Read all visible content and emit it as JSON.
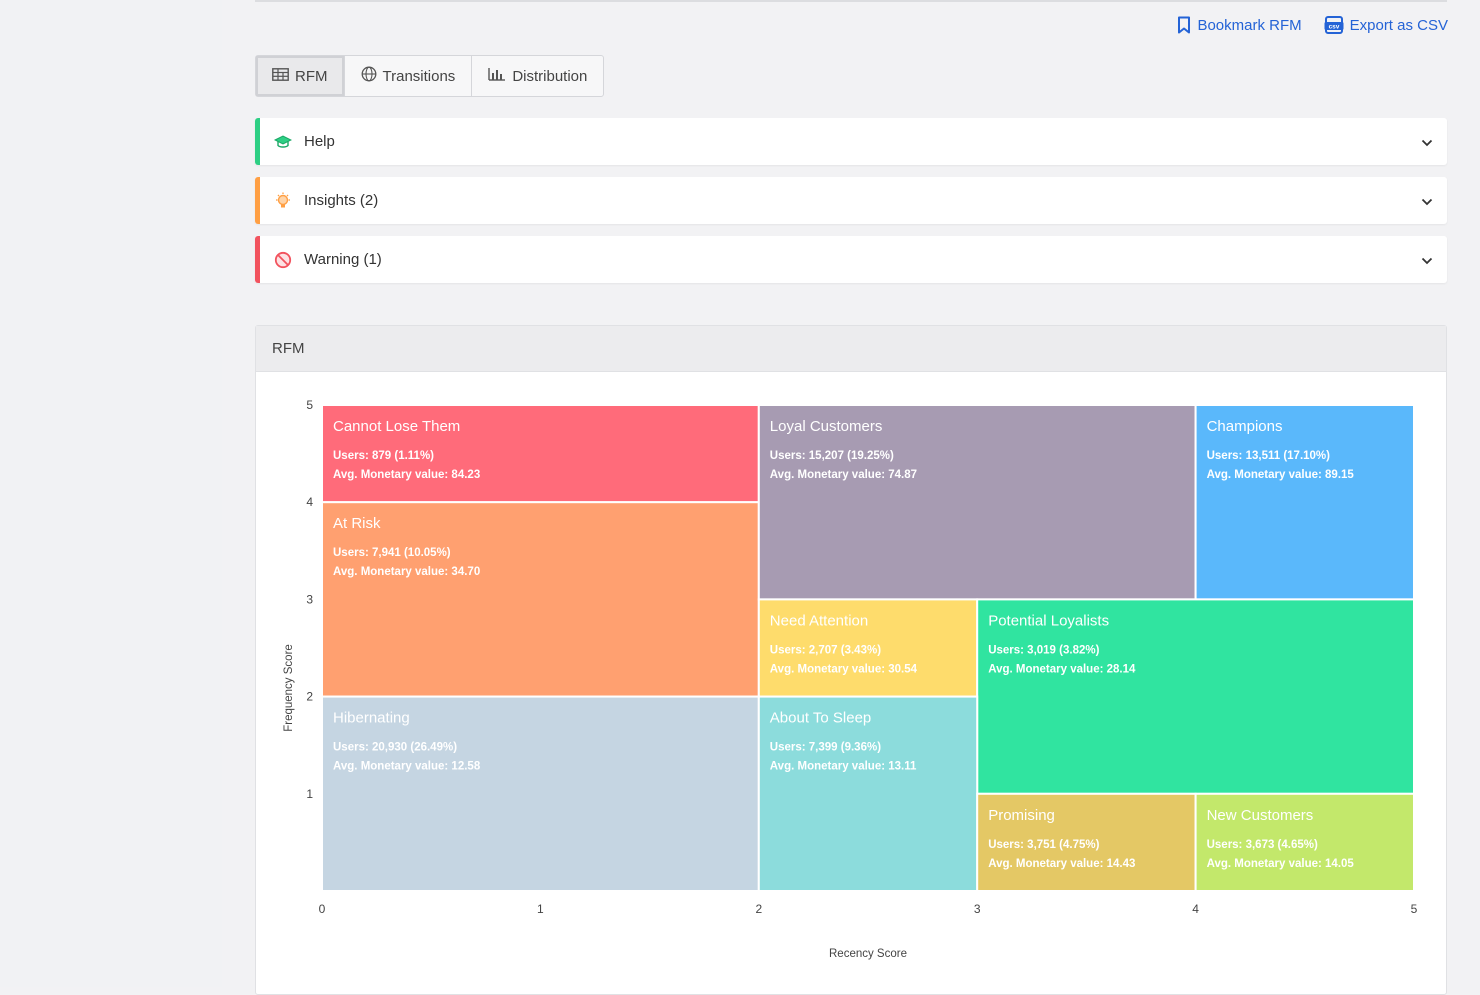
{
  "actions": {
    "bookmark_label": "Bookmark RFM",
    "export_label": "Export as CSV",
    "export_icon_text": "csv"
  },
  "tabs": [
    {
      "label": "RFM",
      "icon": "table-icon",
      "active": true
    },
    {
      "label": "Transitions",
      "icon": "globe-icon",
      "active": false
    },
    {
      "label": "Distribution",
      "icon": "bar-chart-icon",
      "active": false
    }
  ],
  "panels": [
    {
      "label": "Help",
      "icon": "graduation-cap-icon",
      "color": "#2ecf84"
    },
    {
      "label": "Insights (2)",
      "icon": "lightbulb-icon",
      "color": "#ff9f43"
    },
    {
      "label": "Warning (1)",
      "icon": "forbidden-icon",
      "color": "#f2535e"
    }
  ],
  "card": {
    "title": "RFM"
  },
  "chart_data": {
    "type": "heatmap",
    "xlabel": "Recency Score",
    "ylabel": "Frequency Score",
    "xlim": [
      0,
      5
    ],
    "ylim": [
      0,
      5
    ],
    "x_ticks": [
      0,
      1,
      2,
      3,
      4,
      5
    ],
    "y_ticks": [
      1,
      2,
      3,
      4,
      5
    ],
    "users_prefix": "Users: ",
    "monetary_prefix": "Avg. Monetary value: ",
    "segments": [
      {
        "name": "Cannot Lose Them",
        "x0": 0,
        "x1": 2,
        "y0": 4,
        "y1": 5,
        "users": "879",
        "pct": "1.11%",
        "monetary": "84.23",
        "color": "#ff6b7a"
      },
      {
        "name": "At Risk",
        "x0": 0,
        "x1": 2,
        "y0": 2,
        "y1": 4,
        "users": "7,941",
        "pct": "10.05%",
        "monetary": "34.70",
        "color": "#ffa070"
      },
      {
        "name": "Hibernating",
        "x0": 0,
        "x1": 2,
        "y0": 0,
        "y1": 2,
        "users": "20,930",
        "pct": "26.49%",
        "monetary": "12.58",
        "color": "#c5d5e2"
      },
      {
        "name": "Loyal Customers",
        "x0": 2,
        "x1": 4,
        "y0": 3,
        "y1": 5,
        "users": "15,207",
        "pct": "19.25%",
        "monetary": "74.87",
        "color": "#a79bb2"
      },
      {
        "name": "Champions",
        "x0": 4,
        "x1": 5,
        "y0": 3,
        "y1": 5,
        "users": "13,511",
        "pct": "17.10%",
        "monetary": "89.15",
        "color": "#5ab8fb"
      },
      {
        "name": "Need Attention",
        "x0": 2,
        "x1": 3,
        "y0": 2,
        "y1": 3,
        "users": "2,707",
        "pct": "3.43%",
        "monetary": "30.54",
        "color": "#fedc6c"
      },
      {
        "name": "Potential Loyalists",
        "x0": 3,
        "x1": 5,
        "y0": 1,
        "y1": 3,
        "users": "3,019",
        "pct": "3.82%",
        "monetary": "28.14",
        "color": "#30e4a0"
      },
      {
        "name": "About To Sleep",
        "x0": 2,
        "x1": 3,
        "y0": 0,
        "y1": 2,
        "users": "7,399",
        "pct": "9.36%",
        "monetary": "13.11",
        "color": "#8cdcdc"
      },
      {
        "name": "Promising",
        "x0": 3,
        "x1": 4,
        "y0": 0,
        "y1": 1,
        "users": "3,751",
        "pct": "4.75%",
        "monetary": "14.43",
        "color": "#e4c865"
      },
      {
        "name": "New Customers",
        "x0": 4,
        "x1": 5,
        "y0": 0,
        "y1": 1,
        "users": "3,673",
        "pct": "4.65%",
        "monetary": "14.05",
        "color": "#c3e86b"
      }
    ]
  }
}
